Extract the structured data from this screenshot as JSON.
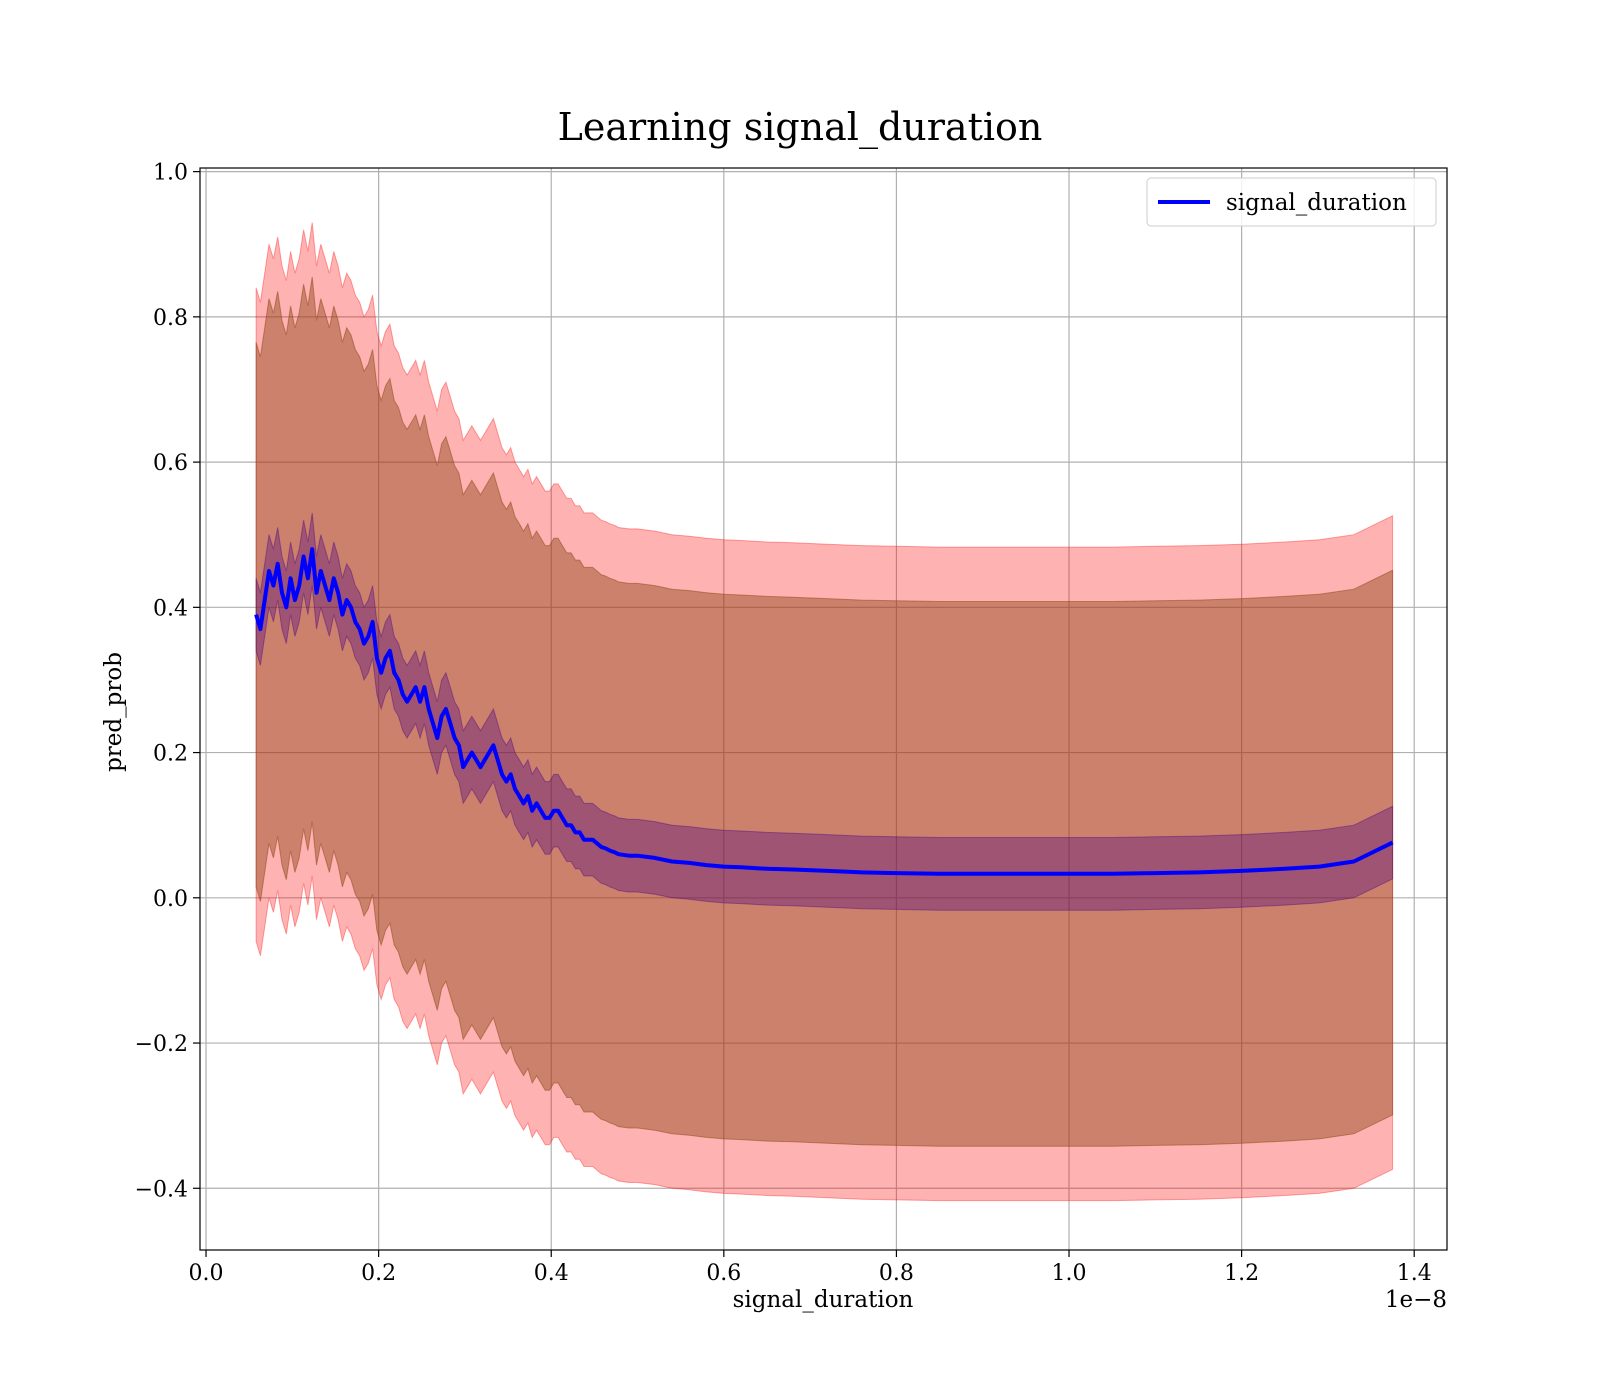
{
  "chart_data": {
    "type": "line",
    "title": "Learning signal_duration",
    "xlabel": "signal_duration",
    "ylabel": "pred_prob",
    "x_offset_text": "1e−8",
    "xlim": [
      -0.007,
      1.438
    ],
    "ylim": [
      -0.485,
      1.005
    ],
    "xticks": [
      0.0,
      0.2,
      0.4,
      0.6,
      0.8,
      1.0,
      1.2,
      1.4
    ],
    "xtick_labels": [
      "0.0",
      "0.2",
      "0.4",
      "0.6",
      "0.8",
      "1.0",
      "1.2",
      "1.4"
    ],
    "yticks": [
      -0.4,
      -0.2,
      0.0,
      0.2,
      0.4,
      0.6,
      0.8,
      1.0
    ],
    "ytick_labels": [
      "−0.4",
      "−0.2",
      "0.0",
      "0.2",
      "0.4",
      "0.6",
      "0.8",
      "1.0"
    ],
    "grid": true,
    "legend": {
      "position": "upper right",
      "entries": [
        "signal_duration"
      ]
    },
    "colors": {
      "line": "#0000ff",
      "outer_band": "#ff0000",
      "inner_band": "#8b4513",
      "sem_band": "#4b0082",
      "grid": "#b0b0b0"
    },
    "series": [
      {
        "name": "signal_duration",
        "x": [
          0.058,
          0.063,
          0.068,
          0.073,
          0.078,
          0.083,
          0.088,
          0.093,
          0.098,
          0.103,
          0.108,
          0.113,
          0.118,
          0.123,
          0.128,
          0.133,
          0.138,
          0.143,
          0.148,
          0.153,
          0.158,
          0.163,
          0.168,
          0.173,
          0.178,
          0.183,
          0.188,
          0.193,
          0.198,
          0.203,
          0.208,
          0.213,
          0.218,
          0.223,
          0.228,
          0.233,
          0.238,
          0.243,
          0.248,
          0.253,
          0.258,
          0.263,
          0.268,
          0.273,
          0.278,
          0.283,
          0.288,
          0.293,
          0.298,
          0.303,
          0.308,
          0.313,
          0.318,
          0.323,
          0.328,
          0.333,
          0.338,
          0.343,
          0.348,
          0.353,
          0.358,
          0.363,
          0.368,
          0.373,
          0.378,
          0.383,
          0.388,
          0.393,
          0.398,
          0.403,
          0.408,
          0.413,
          0.418,
          0.423,
          0.428,
          0.433,
          0.438,
          0.443,
          0.448,
          0.453,
          0.458,
          0.463,
          0.468,
          0.473,
          0.478,
          0.49,
          0.5,
          0.52,
          0.54,
          0.56,
          0.58,
          0.6,
          0.62,
          0.65,
          0.68,
          0.72,
          0.76,
          0.8,
          0.85,
          0.9,
          0.95,
          1.0,
          1.05,
          1.1,
          1.15,
          1.2,
          1.25,
          1.29,
          1.33,
          1.375
        ],
        "y": [
          0.39,
          0.37,
          0.41,
          0.45,
          0.43,
          0.46,
          0.42,
          0.4,
          0.44,
          0.41,
          0.43,
          0.47,
          0.44,
          0.48,
          0.42,
          0.45,
          0.43,
          0.41,
          0.44,
          0.42,
          0.39,
          0.41,
          0.4,
          0.38,
          0.37,
          0.35,
          0.36,
          0.38,
          0.33,
          0.31,
          0.33,
          0.34,
          0.31,
          0.3,
          0.28,
          0.27,
          0.28,
          0.29,
          0.27,
          0.29,
          0.26,
          0.24,
          0.22,
          0.25,
          0.26,
          0.24,
          0.22,
          0.21,
          0.18,
          0.19,
          0.2,
          0.19,
          0.18,
          0.19,
          0.2,
          0.21,
          0.19,
          0.17,
          0.16,
          0.17,
          0.15,
          0.14,
          0.13,
          0.14,
          0.12,
          0.13,
          0.12,
          0.11,
          0.11,
          0.12,
          0.12,
          0.11,
          0.1,
          0.1,
          0.09,
          0.09,
          0.08,
          0.08,
          0.08,
          0.075,
          0.07,
          0.068,
          0.065,
          0.063,
          0.06,
          0.058,
          0.058,
          0.055,
          0.05,
          0.048,
          0.045,
          0.043,
          0.042,
          0.04,
          0.039,
          0.037,
          0.035,
          0.034,
          0.033,
          0.033,
          0.033,
          0.033,
          0.033,
          0.034,
          0.035,
          0.037,
          0.04,
          0.043,
          0.05,
          0.076
        ]
      }
    ],
    "bands": {
      "outer_halfwidth": [
        0.45,
        0.45,
        0.45,
        0.45,
        0.45,
        0.45,
        0.45,
        0.45,
        0.45,
        0.45,
        0.45,
        0.45,
        0.45,
        0.45,
        0.45,
        0.45,
        0.45,
        0.45,
        0.45,
        0.45,
        0.45,
        0.45,
        0.45,
        0.45,
        0.45,
        0.45,
        0.45,
        0.45,
        0.45,
        0.45,
        0.45,
        0.45,
        0.45,
        0.45,
        0.45,
        0.45,
        0.45,
        0.45,
        0.45,
        0.45,
        0.45,
        0.45,
        0.45,
        0.45,
        0.45,
        0.45,
        0.45,
        0.45,
        0.45,
        0.45,
        0.45,
        0.45,
        0.45,
        0.45,
        0.45,
        0.45,
        0.45,
        0.45,
        0.45,
        0.45,
        0.45,
        0.45,
        0.45,
        0.45,
        0.45,
        0.45,
        0.45,
        0.45,
        0.45,
        0.45,
        0.45,
        0.45,
        0.45,
        0.45,
        0.45,
        0.45,
        0.45,
        0.45,
        0.45,
        0.45,
        0.45,
        0.45,
        0.45,
        0.45,
        0.45,
        0.45,
        0.45,
        0.45,
        0.45,
        0.45,
        0.45,
        0.45,
        0.45,
        0.45,
        0.45,
        0.45,
        0.45,
        0.45,
        0.45,
        0.45,
        0.45,
        0.45,
        0.45,
        0.45,
        0.45,
        0.45,
        0.45,
        0.45,
        0.45,
        0.45
      ],
      "inner_halfwidth": [
        0.375,
        0.375,
        0.375,
        0.375,
        0.375,
        0.375,
        0.375,
        0.375,
        0.375,
        0.375,
        0.375,
        0.375,
        0.375,
        0.375,
        0.375,
        0.375,
        0.375,
        0.375,
        0.375,
        0.375,
        0.375,
        0.375,
        0.375,
        0.375,
        0.375,
        0.375,
        0.375,
        0.375,
        0.375,
        0.375,
        0.375,
        0.375,
        0.375,
        0.375,
        0.375,
        0.375,
        0.375,
        0.375,
        0.375,
        0.375,
        0.375,
        0.375,
        0.375,
        0.375,
        0.375,
        0.375,
        0.375,
        0.375,
        0.375,
        0.375,
        0.375,
        0.375,
        0.375,
        0.375,
        0.375,
        0.375,
        0.375,
        0.375,
        0.375,
        0.375,
        0.375,
        0.375,
        0.375,
        0.375,
        0.375,
        0.375,
        0.375,
        0.375,
        0.375,
        0.375,
        0.375,
        0.375,
        0.375,
        0.375,
        0.375,
        0.375,
        0.375,
        0.375,
        0.375,
        0.375,
        0.375,
        0.375,
        0.375,
        0.375,
        0.375,
        0.375,
        0.375,
        0.375,
        0.375,
        0.375,
        0.375,
        0.375,
        0.375,
        0.375,
        0.375,
        0.375,
        0.375,
        0.375,
        0.375,
        0.375,
        0.375,
        0.375,
        0.375,
        0.375,
        0.375,
        0.375,
        0.375,
        0.375,
        0.375,
        0.375
      ],
      "sem_halfwidth": [
        0.05,
        0.05,
        0.05,
        0.05,
        0.05,
        0.05,
        0.05,
        0.05,
        0.05,
        0.05,
        0.05,
        0.05,
        0.05,
        0.05,
        0.05,
        0.05,
        0.05,
        0.05,
        0.05,
        0.05,
        0.05,
        0.05,
        0.05,
        0.05,
        0.05,
        0.05,
        0.05,
        0.05,
        0.05,
        0.05,
        0.05,
        0.05,
        0.05,
        0.05,
        0.05,
        0.05,
        0.05,
        0.05,
        0.05,
        0.05,
        0.05,
        0.05,
        0.05,
        0.05,
        0.05,
        0.05,
        0.05,
        0.05,
        0.05,
        0.05,
        0.05,
        0.05,
        0.05,
        0.05,
        0.05,
        0.05,
        0.05,
        0.05,
        0.05,
        0.05,
        0.05,
        0.05,
        0.05,
        0.05,
        0.05,
        0.05,
        0.05,
        0.05,
        0.05,
        0.05,
        0.05,
        0.05,
        0.05,
        0.05,
        0.05,
        0.05,
        0.05,
        0.05,
        0.05,
        0.05,
        0.05,
        0.05,
        0.05,
        0.05,
        0.05,
        0.05,
        0.05,
        0.05,
        0.05,
        0.05,
        0.05,
        0.05,
        0.05,
        0.05,
        0.05,
        0.05,
        0.05,
        0.05,
        0.05,
        0.05,
        0.05,
        0.05,
        0.05,
        0.05,
        0.05,
        0.05,
        0.05,
        0.05,
        0.05,
        0.05
      ]
    }
  }
}
